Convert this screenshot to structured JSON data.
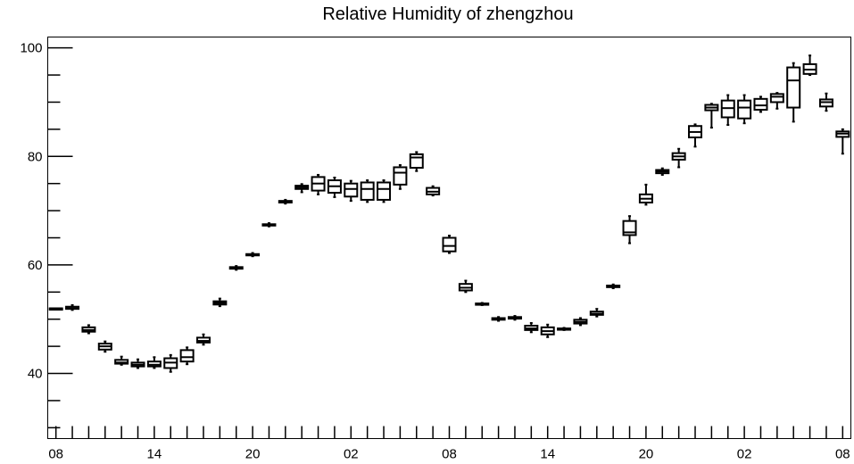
{
  "chart_data": {
    "type": "box",
    "title": "Relative Humidity of zhengzhou",
    "xlabel": "",
    "ylabel": "",
    "ylim": [
      28,
      102
    ],
    "yticks": [
      40,
      60,
      80,
      100
    ],
    "grid": false,
    "x_tick_labels": [
      "08",
      "14",
      "20",
      "02",
      "08",
      "14",
      "20",
      "02",
      "08"
    ],
    "x_tick_label_index": [
      0,
      6,
      12,
      18,
      24,
      30,
      36,
      42,
      48
    ],
    "x_index_range": [
      -0.5,
      48.5
    ],
    "boxes": [
      {
        "i": 0,
        "min": 52.0,
        "q1": 52.0,
        "median": 52.0,
        "q3": 52.0,
        "max": 52.0
      },
      {
        "i": 1,
        "min": 51.7,
        "q1": 51.9,
        "median": 52.0,
        "q3": 52.3,
        "max": 52.6
      },
      {
        "i": 2,
        "min": 47.4,
        "q1": 47.7,
        "median": 48.0,
        "q3": 48.5,
        "max": 48.9
      },
      {
        "i": 3,
        "min": 44.0,
        "q1": 44.4,
        "median": 45.0,
        "q3": 45.5,
        "max": 45.9
      },
      {
        "i": 4,
        "min": 41.6,
        "q1": 41.8,
        "median": 42.0,
        "q3": 42.5,
        "max": 43.1
      },
      {
        "i": 5,
        "min": 41.0,
        "q1": 41.3,
        "median": 41.6,
        "q3": 42.0,
        "max": 42.6
      },
      {
        "i": 6,
        "min": 41.0,
        "q1": 41.3,
        "median": 41.6,
        "q3": 42.2,
        "max": 43.0
      },
      {
        "i": 7,
        "min": 40.3,
        "q1": 41.0,
        "median": 42.0,
        "q3": 42.8,
        "max": 43.4
      },
      {
        "i": 8,
        "min": 41.7,
        "q1": 42.2,
        "median": 43.0,
        "q3": 44.3,
        "max": 44.8
      },
      {
        "i": 9,
        "min": 45.3,
        "q1": 45.7,
        "median": 46.0,
        "q3": 46.6,
        "max": 47.2
      },
      {
        "i": 10,
        "min": 52.4,
        "q1": 52.7,
        "median": 53.0,
        "q3": 53.3,
        "max": 53.8
      },
      {
        "i": 11,
        "min": 59.1,
        "q1": 59.3,
        "median": 59.4,
        "q3": 59.6,
        "max": 59.8
      },
      {
        "i": 12,
        "min": 61.6,
        "q1": 61.8,
        "median": 61.9,
        "q3": 62.0,
        "max": 62.2
      },
      {
        "i": 13,
        "min": 67.1,
        "q1": 67.3,
        "median": 67.4,
        "q3": 67.5,
        "max": 67.7
      },
      {
        "i": 14,
        "min": 71.3,
        "q1": 71.5,
        "median": 71.6,
        "q3": 71.8,
        "max": 72.0
      },
      {
        "i": 15,
        "min": 73.4,
        "q1": 74.0,
        "median": 74.3,
        "q3": 74.6,
        "max": 74.9
      },
      {
        "i": 16,
        "min": 73.0,
        "q1": 73.7,
        "median": 75.0,
        "q3": 76.2,
        "max": 76.6
      },
      {
        "i": 17,
        "min": 72.5,
        "q1": 73.3,
        "median": 74.5,
        "q3": 75.6,
        "max": 76.1
      },
      {
        "i": 18,
        "min": 71.8,
        "q1": 72.6,
        "median": 74.0,
        "q3": 75.0,
        "max": 75.5
      },
      {
        "i": 19,
        "min": 71.6,
        "q1": 72.0,
        "median": 74.0,
        "q3": 75.2,
        "max": 75.6
      },
      {
        "i": 20,
        "min": 71.6,
        "q1": 72.0,
        "median": 74.0,
        "q3": 75.2,
        "max": 75.6
      },
      {
        "i": 21,
        "min": 74.0,
        "q1": 74.8,
        "median": 77.0,
        "q3": 78.0,
        "max": 78.4
      },
      {
        "i": 22,
        "min": 77.3,
        "q1": 77.9,
        "median": 79.8,
        "q3": 80.4,
        "max": 80.8
      },
      {
        "i": 23,
        "min": 72.8,
        "q1": 73.0,
        "median": 73.5,
        "q3": 74.2,
        "max": 74.5
      },
      {
        "i": 24,
        "min": 62.2,
        "q1": 62.5,
        "median": 63.5,
        "q3": 65.0,
        "max": 65.4
      },
      {
        "i": 25,
        "min": 55.0,
        "q1": 55.3,
        "median": 55.8,
        "q3": 56.5,
        "max": 57.1
      },
      {
        "i": 26,
        "min": 52.6,
        "q1": 52.7,
        "median": 52.8,
        "q3": 52.9,
        "max": 53.0
      },
      {
        "i": 27,
        "min": 49.7,
        "q1": 49.9,
        "median": 50.0,
        "q3": 50.2,
        "max": 50.4
      },
      {
        "i": 28,
        "min": 49.9,
        "q1": 50.1,
        "median": 50.2,
        "q3": 50.4,
        "max": 50.6
      },
      {
        "i": 29,
        "min": 47.6,
        "q1": 48.0,
        "median": 48.3,
        "q3": 48.8,
        "max": 49.3
      },
      {
        "i": 30,
        "min": 46.7,
        "q1": 47.2,
        "median": 47.8,
        "q3": 48.5,
        "max": 49.0
      },
      {
        "i": 31,
        "min": 48.0,
        "q1": 48.1,
        "median": 48.2,
        "q3": 48.3,
        "max": 48.4
      },
      {
        "i": 32,
        "min": 48.9,
        "q1": 49.2,
        "median": 49.5,
        "q3": 49.9,
        "max": 50.2
      },
      {
        "i": 33,
        "min": 50.5,
        "q1": 50.8,
        "median": 51.0,
        "q3": 51.4,
        "max": 51.9
      },
      {
        "i": 34,
        "min": 55.7,
        "q1": 55.9,
        "median": 56.0,
        "q3": 56.2,
        "max": 56.4
      },
      {
        "i": 35,
        "min": 64.0,
        "q1": 65.5,
        "median": 66.0,
        "q3": 68.1,
        "max": 69.0
      },
      {
        "i": 36,
        "min": 71.1,
        "q1": 71.5,
        "median": 72.2,
        "q3": 73.0,
        "max": 74.8
      },
      {
        "i": 37,
        "min": 76.6,
        "q1": 76.9,
        "median": 77.2,
        "q3": 77.5,
        "max": 77.8
      },
      {
        "i": 38,
        "min": 78.0,
        "q1": 79.4,
        "median": 80.0,
        "q3": 80.6,
        "max": 81.4
      },
      {
        "i": 39,
        "min": 81.8,
        "q1": 83.5,
        "median": 84.5,
        "q3": 85.6,
        "max": 85.9
      },
      {
        "i": 40,
        "min": 85.3,
        "q1": 88.5,
        "median": 89.0,
        "q3": 89.5,
        "max": 89.7
      },
      {
        "i": 41,
        "min": 85.8,
        "q1": 87.2,
        "median": 88.9,
        "q3": 90.3,
        "max": 91.3
      },
      {
        "i": 42,
        "min": 86.1,
        "q1": 87.0,
        "median": 89.0,
        "q3": 90.3,
        "max": 91.3
      },
      {
        "i": 43,
        "min": 88.2,
        "q1": 88.6,
        "median": 89.4,
        "q3": 90.6,
        "max": 91.0
      },
      {
        "i": 44,
        "min": 88.8,
        "q1": 90.0,
        "median": 91.0,
        "q3": 91.5,
        "max": 91.7
      },
      {
        "i": 45,
        "min": 86.4,
        "q1": 89.0,
        "median": 94.0,
        "q3": 96.4,
        "max": 97.2
      },
      {
        "i": 46,
        "min": 95.0,
        "q1": 95.2,
        "median": 96.0,
        "q3": 97.0,
        "max": 98.6
      },
      {
        "i": 47,
        "min": 88.4,
        "q1": 89.2,
        "median": 90.0,
        "q3": 90.5,
        "max": 91.6
      },
      {
        "i": 48,
        "min": 80.5,
        "q1": 83.6,
        "median": 84.2,
        "q3": 84.6,
        "max": 85.0
      }
    ]
  }
}
